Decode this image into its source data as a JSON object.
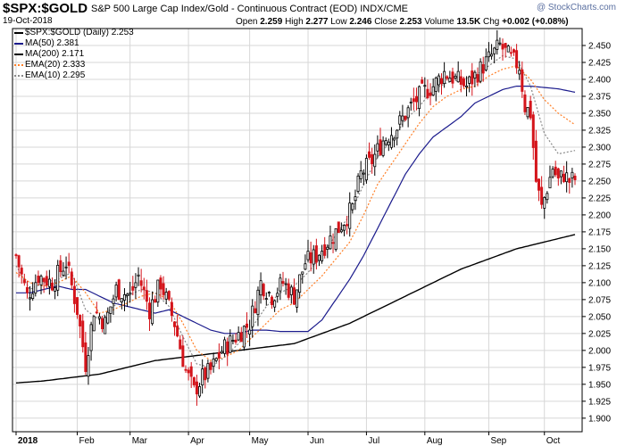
{
  "header": {
    "symbol": "$SPX:$GOLD",
    "description": "S&P 500 Large Cap Index/Gold - Continuous Contract (EOD) INDX/CME",
    "date": "19-Oct-2018",
    "quote": {
      "open_label": "Open",
      "open": "2.259",
      "high_label": "High",
      "high": "2.277",
      "low_label": "Low",
      "low": "2.246",
      "close_label": "Close",
      "close": "2.253",
      "volume_label": "Volume",
      "volume": "13.5K",
      "chg_label": "Chg",
      "chg": "+0.002 (+0.08%)"
    },
    "brand": "@ StockCharts.com"
  },
  "legend": [
    {
      "label": "$SPX:$GOLD (Daily) 2.253",
      "color": "#000000",
      "style": "solid"
    },
    {
      "label": "MA(50) 2.381",
      "color": "#1a1a8c",
      "style": "solid"
    },
    {
      "label": "MA(200) 2.171",
      "color": "#000000",
      "style": "solid"
    },
    {
      "label": "EMA(20) 2.333",
      "color": "#ff7f27",
      "style": "dotted"
    },
    {
      "label": "EMA(10) 2.295",
      "color": "#888888",
      "style": "dotted"
    }
  ],
  "colors": {
    "up": "#ffffff",
    "up_outline": "#000000",
    "down": "#d4141b",
    "grid": "#d7d7d7",
    "ma50": "#1a1a8c",
    "ma200": "#000000",
    "ema20": "#ff7f27",
    "ema10": "#888888"
  },
  "chart_data": {
    "type": "candlestick",
    "y_axis": {
      "range": [
        1.88,
        2.475
      ],
      "ticks": [
        "1.900",
        "1.925",
        "1.950",
        "1.975",
        "2.000",
        "2.025",
        "2.050",
        "2.075",
        "2.100",
        "2.125",
        "2.150",
        "2.175",
        "2.200",
        "2.225",
        "2.250",
        "2.275",
        "2.300",
        "2.325",
        "2.350",
        "2.375",
        "2.400",
        "2.425",
        "2.450"
      ],
      "position": "right"
    },
    "x_axis": {
      "labels": [
        "2018",
        "Feb",
        "Mar",
        "Apr",
        "May",
        "Jun",
        "Jul",
        "Aug",
        "Sep",
        "Oct"
      ],
      "label_days": [
        0,
        22,
        41,
        62,
        84,
        105,
        126,
        147,
        170,
        190
      ],
      "total_days": 202
    },
    "price_anchors": [
      [
        0,
        2.14
      ],
      [
        4,
        2.08
      ],
      [
        8,
        2.11
      ],
      [
        13,
        2.1
      ],
      [
        18,
        2.13
      ],
      [
        22,
        2.06
      ],
      [
        25,
        1.98
      ],
      [
        28,
        2.06
      ],
      [
        32,
        2.04
      ],
      [
        36,
        2.09
      ],
      [
        41,
        2.08
      ],
      [
        44,
        2.11
      ],
      [
        48,
        2.06
      ],
      [
        52,
        2.1
      ],
      [
        57,
        2.04
      ],
      [
        61,
        1.97
      ],
      [
        64,
        1.94
      ],
      [
        67,
        1.96
      ],
      [
        70,
        1.97
      ],
      [
        74,
        2.0
      ],
      [
        79,
        2.02
      ],
      [
        84,
        2.04
      ],
      [
        88,
        2.1
      ],
      [
        92,
        2.08
      ],
      [
        96,
        2.1
      ],
      [
        100,
        2.08
      ],
      [
        104,
        2.13
      ],
      [
        108,
        2.14
      ],
      [
        112,
        2.16
      ],
      [
        116,
        2.18
      ],
      [
        121,
        2.21
      ],
      [
        124,
        2.26
      ],
      [
        128,
        2.28
      ],
      [
        132,
        2.31
      ],
      [
        137,
        2.33
      ],
      [
        142,
        2.36
      ],
      [
        146,
        2.38
      ],
      [
        150,
        2.39
      ],
      [
        154,
        2.41
      ],
      [
        158,
        2.4
      ],
      [
        162,
        2.39
      ],
      [
        166,
        2.41
      ],
      [
        170,
        2.43
      ],
      [
        174,
        2.45
      ],
      [
        178,
        2.43
      ],
      [
        181,
        2.42
      ],
      [
        183,
        2.36
      ],
      [
        185,
        2.35
      ],
      [
        187,
        2.25
      ],
      [
        189,
        2.21
      ],
      [
        191,
        2.24
      ],
      [
        193,
        2.27
      ],
      [
        195,
        2.25
      ],
      [
        197,
        2.26
      ],
      [
        199,
        2.25
      ],
      [
        201,
        2.253
      ]
    ],
    "ma50": [
      [
        0,
        2.085
      ],
      [
        5,
        2.085
      ],
      [
        10,
        2.09
      ],
      [
        15,
        2.095
      ],
      [
        20,
        2.09
      ],
      [
        25,
        2.09
      ],
      [
        30,
        2.08
      ],
      [
        35,
        2.07
      ],
      [
        40,
        2.065
      ],
      [
        45,
        2.06
      ],
      [
        50,
        2.055
      ],
      [
        55,
        2.06
      ],
      [
        60,
        2.05
      ],
      [
        65,
        2.04
      ],
      [
        70,
        2.03
      ],
      [
        75,
        2.025
      ],
      [
        80,
        2.025
      ],
      [
        85,
        2.03
      ],
      [
        90,
        2.03
      ],
      [
        95,
        2.028
      ],
      [
        100,
        2.028
      ],
      [
        105,
        2.028
      ],
      [
        110,
        2.045
      ],
      [
        115,
        2.075
      ],
      [
        120,
        2.105
      ],
      [
        125,
        2.14
      ],
      [
        130,
        2.18
      ],
      [
        135,
        2.22
      ],
      [
        140,
        2.26
      ],
      [
        145,
        2.29
      ],
      [
        150,
        2.315
      ],
      [
        155,
        2.33
      ],
      [
        160,
        2.345
      ],
      [
        165,
        2.365
      ],
      [
        170,
        2.375
      ],
      [
        175,
        2.385
      ],
      [
        180,
        2.39
      ],
      [
        185,
        2.39
      ],
      [
        190,
        2.388
      ],
      [
        195,
        2.386
      ],
      [
        201,
        2.381
      ]
    ],
    "ma200": [
      [
        0,
        1.952
      ],
      [
        10,
        1.955
      ],
      [
        20,
        1.96
      ],
      [
        30,
        1.965
      ],
      [
        40,
        1.975
      ],
      [
        50,
        1.985
      ],
      [
        60,
        1.99
      ],
      [
        70,
        1.995
      ],
      [
        80,
        2.0
      ],
      [
        90,
        2.005
      ],
      [
        100,
        2.01
      ],
      [
        110,
        2.025
      ],
      [
        120,
        2.04
      ],
      [
        130,
        2.06
      ],
      [
        140,
        2.08
      ],
      [
        150,
        2.1
      ],
      [
        160,
        2.12
      ],
      [
        170,
        2.135
      ],
      [
        180,
        2.15
      ],
      [
        190,
        2.16
      ],
      [
        201,
        2.171
      ]
    ],
    "ema20": [
      [
        0,
        2.115
      ],
      [
        5,
        2.1
      ],
      [
        10,
        2.095
      ],
      [
        15,
        2.1
      ],
      [
        20,
        2.11
      ],
      [
        25,
        2.085
      ],
      [
        30,
        2.055
      ],
      [
        35,
        2.06
      ],
      [
        40,
        2.07
      ],
      [
        45,
        2.08
      ],
      [
        50,
        2.085
      ],
      [
        55,
        2.075
      ],
      [
        60,
        2.04
      ],
      [
        65,
        2.0
      ],
      [
        70,
        1.985
      ],
      [
        75,
        1.99
      ],
      [
        80,
        2.0
      ],
      [
        85,
        2.02
      ],
      [
        90,
        2.04
      ],
      [
        95,
        2.06
      ],
      [
        100,
        2.07
      ],
      [
        105,
        2.09
      ],
      [
        110,
        2.11
      ],
      [
        115,
        2.135
      ],
      [
        120,
        2.16
      ],
      [
        125,
        2.2
      ],
      [
        130,
        2.245
      ],
      [
        135,
        2.275
      ],
      [
        140,
        2.305
      ],
      [
        145,
        2.335
      ],
      [
        150,
        2.36
      ],
      [
        155,
        2.375
      ],
      [
        160,
        2.385
      ],
      [
        165,
        2.39
      ],
      [
        170,
        2.405
      ],
      [
        175,
        2.415
      ],
      [
        180,
        2.42
      ],
      [
        185,
        2.4
      ],
      [
        190,
        2.37
      ],
      [
        195,
        2.35
      ],
      [
        201,
        2.333
      ]
    ],
    "ema10": [
      [
        0,
        2.125
      ],
      [
        5,
        2.09
      ],
      [
        10,
        2.1
      ],
      [
        15,
        2.105
      ],
      [
        20,
        2.115
      ],
      [
        25,
        2.06
      ],
      [
        30,
        2.045
      ],
      [
        35,
        2.065
      ],
      [
        40,
        2.08
      ],
      [
        45,
        2.09
      ],
      [
        50,
        2.085
      ],
      [
        55,
        2.065
      ],
      [
        60,
        2.02
      ],
      [
        65,
        1.98
      ],
      [
        70,
        1.975
      ],
      [
        75,
        1.99
      ],
      [
        80,
        2.01
      ],
      [
        85,
        2.035
      ],
      [
        90,
        2.065
      ],
      [
        95,
        2.085
      ],
      [
        100,
        2.095
      ],
      [
        105,
        2.115
      ],
      [
        110,
        2.14
      ],
      [
        115,
        2.17
      ],
      [
        120,
        2.2
      ],
      [
        125,
        2.245
      ],
      [
        130,
        2.285
      ],
      [
        135,
        2.31
      ],
      [
        140,
        2.34
      ],
      [
        145,
        2.36
      ],
      [
        150,
        2.385
      ],
      [
        155,
        2.395
      ],
      [
        160,
        2.4
      ],
      [
        165,
        2.405
      ],
      [
        170,
        2.42
      ],
      [
        175,
        2.435
      ],
      [
        180,
        2.43
      ],
      [
        185,
        2.39
      ],
      [
        190,
        2.32
      ],
      [
        195,
        2.29
      ],
      [
        201,
        2.295
      ]
    ]
  }
}
